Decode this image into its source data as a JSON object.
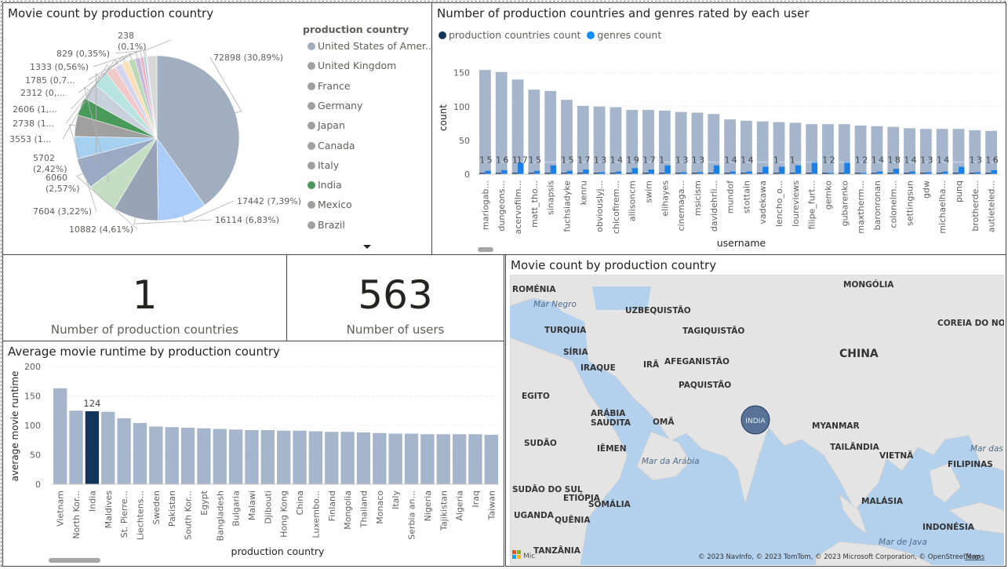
{
  "pie_panel": {
    "title": "Movie count by production country",
    "legend_title": "production country",
    "legend": [
      {
        "label": "United States of Amer...",
        "color": "#a0aec0"
      },
      {
        "label": "United Kingdom",
        "color": "#a0a0a0"
      },
      {
        "label": "France",
        "color": "#a0a0a0"
      },
      {
        "label": "Germany",
        "color": "#a0a0a0"
      },
      {
        "label": "Japan",
        "color": "#a0a0a0"
      },
      {
        "label": "Canada",
        "color": "#a0a0a0"
      },
      {
        "label": "Italy",
        "color": "#a0a0a0"
      },
      {
        "label": "India",
        "color": "#4a9a5c"
      },
      {
        "label": "Mexico",
        "color": "#a0a0a0"
      },
      {
        "label": "Brazil",
        "color": "#a0a0a0"
      }
    ],
    "more_icon": "caret-down-icon"
  },
  "user_panel": {
    "title": "Number of production countries and genres rated by each user",
    "legend": [
      {
        "label": "production countries count",
        "color": "#12355b"
      },
      {
        "label": "genres count",
        "color": "#118dff"
      }
    ],
    "colors": {
      "countries": "#a5b6cc",
      "genres": "#7ab5f5",
      "genres_hl": "#1c7fe6",
      "countries_hl": "#2a4470"
    }
  },
  "cards": [
    {
      "value": "1",
      "label": "Number of production countries"
    },
    {
      "value": "563",
      "label": "Number of users"
    }
  ],
  "runtime_panel": {
    "title": "Average movie runtime by production country",
    "colors": {
      "bar": "#a5b6cc",
      "highlight": "#12355b"
    }
  },
  "map_panel": {
    "title": "Movie count by production country",
    "labels": [
      "MONGÓLIA",
      "ROMÉNIA",
      "Mar Negro",
      "UZBEQUISTÃO",
      "TURQUIA",
      "TAGIQUISTÃO",
      "SÍRIA",
      "COREIA DO NORTE",
      "IRAQUE",
      "IRÃ",
      "AFEGANISTÃO",
      "CHINA",
      "PAQUISTÃO",
      "EGITO",
      "ARÁBIA SAUDITA",
      "OMÃ",
      "INDIA",
      "MYANMAR",
      "SUDÃO",
      "IÊMEN",
      "TAILÂNDIA",
      "VIETNÃ",
      "Mar das F",
      "Mar da Arábia",
      "FILIPINAS",
      "SUDÃO DO SUL",
      "ETIÓPIA",
      "SOMÁLIA",
      "MALÁSIA",
      "UGANDA",
      "QUÊNIA",
      "INDONÉSIA",
      "TANZÂNIA",
      "Mar de Java"
    ],
    "bubble_label": "INDIA",
    "attribution": "© 2023 NavInfo, © 2023 TomTom, © 2023 Microsoft Corporation, © OpenStreetMap",
    "terms": "Terms",
    "logo": "Mic",
    "colors": {
      "water": "#b3d0ed",
      "land": "#e4e4e4",
      "bubble": "#3e5d8a"
    }
  },
  "chart_data": [
    {
      "type": "pie",
      "title": "Movie count by production country",
      "legend_title": "production country",
      "slices": [
        {
          "label": "United States of America",
          "value": 72898,
          "data_label": "72898 (30,89%)",
          "color": "#a0aec0"
        },
        {
          "label": "United Kingdom",
          "value": 17442,
          "data_label": "17442 (7,39%)",
          "color": "#a9cdf8"
        },
        {
          "label": "France",
          "value": 16114,
          "data_label": "16114 (6,83%)",
          "color": "#98a4b5"
        },
        {
          "label": "Germany",
          "value": 11500,
          "color": "#c4dec4"
        },
        {
          "label": "Japan",
          "value": 10882,
          "data_label": "10882 (4,61%)",
          "color": "#9aaac4"
        },
        {
          "label": "Canada",
          "value": 8000,
          "color": "#a6d0f0"
        },
        {
          "label": "Italy",
          "value": 7604,
          "data_label": "7604 (3,22%)",
          "color": "#a0a0a0"
        },
        {
          "label": "India",
          "value": 6400,
          "color": "#4a9a5c"
        },
        {
          "label": "Mexico",
          "value": 6060,
          "data_label": "6060 (2,57%)",
          "color": "#c8d0dc"
        },
        {
          "label": "Brazil",
          "value": 5702,
          "data_label": "5702 (2,42%)",
          "color": "#b8e4e0"
        },
        {
          "label": "",
          "value": 3553,
          "data_label": "3553 (1...",
          "color": "#f0c8c8"
        },
        {
          "label": "",
          "value": 2738,
          "data_label": "2738 (1...",
          "color": "#d4d4ec"
        },
        {
          "label": "",
          "value": 2606,
          "data_label": "2606 (1,...",
          "color": "#f8e0b8"
        },
        {
          "label": "",
          "value": 2312,
          "data_label": "2312 (0,...",
          "color": "#b8d8b8"
        },
        {
          "label": "",
          "value": 1785,
          "data_label": "1785 (0,7...",
          "color": "#c8b8d8"
        },
        {
          "label": "",
          "value": 1333,
          "data_label": "1333 (0,56%)",
          "color": "#e8b8c8"
        },
        {
          "label": "",
          "value": 829,
          "data_label": "829 (0,35%)",
          "color": "#b0c8e0"
        },
        {
          "label": "",
          "value": 238,
          "data_label": "238 (0,1%)",
          "color": "#e0e0a0"
        },
        {
          "label": "",
          "value": 3650,
          "color": "#d8d8d8"
        }
      ]
    },
    {
      "type": "bar",
      "title": "Number of production countries and genres rated by each user",
      "xlabel": "username",
      "ylabel": "count",
      "ylim": [
        0,
        160
      ],
      "yticks": [
        0,
        50,
        100,
        150
      ],
      "grid": true,
      "legend_position": "top-left",
      "categories": [
        "mariogab...",
        "dungeons...",
        "acervofilm...",
        "matt_tho...",
        "sinapsis",
        "fuchsiadyke",
        "kenru",
        "obviouslyj...",
        "chicofirem...",
        "allisoncm",
        "swim",
        "elihayes",
        "cinemaga...",
        "msicism",
        "davidehrli...",
        "mundof",
        "stottain",
        "vadekawa",
        "lencho_o...",
        "loureviews",
        "filipe_furt...",
        "gemko",
        "gubarenko",
        "maxtherm...",
        "baronronan",
        "colonelm...",
        "settingsun",
        "gdw",
        "michaelha...",
        "punq",
        "brotherde...",
        "autieteled..."
      ],
      "series": [
        {
          "name": "production countries count",
          "values": [
            1,
            1,
            1,
            1,
            1,
            1,
            1,
            1,
            1,
            1,
            1,
            1,
            1,
            1,
            1,
            1,
            1,
            1,
            1,
            1,
            1,
            1,
            1,
            1,
            1,
            1,
            1,
            1,
            1,
            1,
            1,
            1
          ]
        },
        {
          "name": "genres count",
          "values": [
            5,
            6,
            17,
            5,
            13,
            5,
            7,
            3,
            4,
            9,
            7,
            13,
            3,
            3,
            13,
            4,
            4,
            11,
            11,
            13,
            19,
            2,
            19,
            2,
            4,
            8,
            4,
            3,
            4,
            11,
            3,
            6
          ]
        },
        {
          "name": "background",
          "values": [
            154,
            151,
            140,
            125,
            123,
            110,
            101,
            100,
            99,
            95,
            95,
            94,
            92,
            91,
            89,
            81,
            79,
            78,
            77,
            76,
            74,
            74,
            74,
            72,
            71,
            70,
            68,
            67,
            67,
            67,
            65,
            64
          ]
        }
      ],
      "data_labels": [
        "1",
        "5",
        "1",
        "6",
        "1",
        "17",
        "1",
        "5",
        "",
        "",
        "1",
        "5",
        "1",
        "7",
        "1",
        "3",
        "1",
        "4",
        "1",
        "9",
        "1",
        "7",
        "1",
        "",
        "1",
        "3",
        "1",
        "3",
        "",
        "",
        "1",
        "4",
        "1",
        "4",
        "",
        "",
        "1",
        "",
        "1",
        "",
        "",
        "",
        "1",
        "2",
        "",
        "",
        "1",
        "2",
        "1",
        "4",
        "1",
        "8",
        "1",
        "4",
        "1",
        "3",
        "1",
        "4",
        "",
        "",
        "1",
        "3",
        "1",
        "6"
      ]
    },
    {
      "type": "bar",
      "title": "Average movie runtime by production country",
      "xlabel": "production country",
      "ylabel": "average movie runtime",
      "ylim": [
        0,
        200
      ],
      "yticks": [
        0,
        50,
        100,
        150,
        200
      ],
      "grid": true,
      "categories": [
        "Vietnam",
        "North Kor...",
        "India",
        "Maldives",
        "St. Pierre...",
        "Liechtens...",
        "Sweden",
        "Pakistan",
        "South Kor...",
        "Egypt",
        "Bangladesh",
        "Bulgaria",
        "Malawi",
        "Djibouti",
        "Hong Kong",
        "China",
        "Luxembo...",
        "Finland",
        "Mongolia",
        "Thailand",
        "Monaco",
        "Italy",
        "Serbia an...",
        "Nigeria",
        "Tajikistan",
        "Algeria",
        "Iraq",
        "Taiwan"
      ],
      "values": [
        163,
        125,
        124,
        123,
        112,
        104,
        98,
        97,
        96,
        95,
        94,
        93,
        92,
        92,
        91,
        91,
        90,
        89,
        89,
        88,
        87,
        86,
        86,
        85,
        85,
        85,
        85,
        84
      ],
      "highlight": "India",
      "highlight_label": "124"
    }
  ]
}
